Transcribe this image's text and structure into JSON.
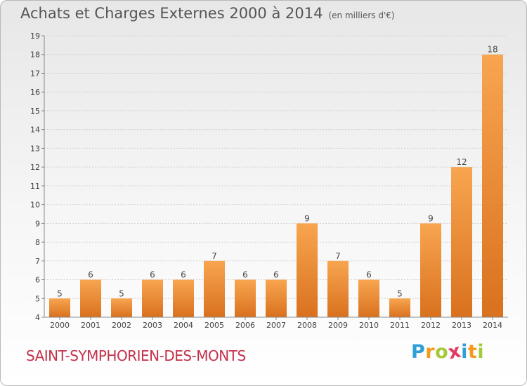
{
  "title": "Achats et Charges Externes 2000 à 2014",
  "unit": "(en milliers d'€)",
  "place": "SAINT-SYMPHORIEN-DES-MONTS",
  "logo": {
    "letters": [
      "P",
      "r",
      "o",
      "x",
      "i",
      "t",
      "i"
    ],
    "colors": [
      "#2f9fd7",
      "#f39a1e",
      "#a6c93a",
      "#e23a66",
      "#2f9fd7",
      "#f39a1e",
      "#a6c93a"
    ]
  },
  "chart_data": {
    "type": "bar",
    "categories": [
      "2000",
      "2001",
      "2002",
      "2003",
      "2004",
      "2005",
      "2006",
      "2007",
      "2008",
      "2009",
      "2010",
      "2011",
      "2012",
      "2013",
      "2014"
    ],
    "values": [
      5,
      6,
      5,
      6,
      6,
      7,
      6,
      6,
      9,
      7,
      6,
      5,
      9,
      12,
      18
    ],
    "data_labels": [
      "5",
      "6",
      "5",
      "6",
      "6",
      "7",
      "6",
      "6",
      "9",
      "7",
      "6",
      "5",
      "9",
      "12",
      "18"
    ],
    "ylim": [
      4,
      19
    ],
    "yticks": [
      "4",
      "5",
      "6",
      "7",
      "8",
      "9",
      "10",
      "11",
      "12",
      "13",
      "14",
      "15",
      "16",
      "17",
      "18",
      "19"
    ],
    "grid": true,
    "bar_color": "#f59a3e"
  }
}
